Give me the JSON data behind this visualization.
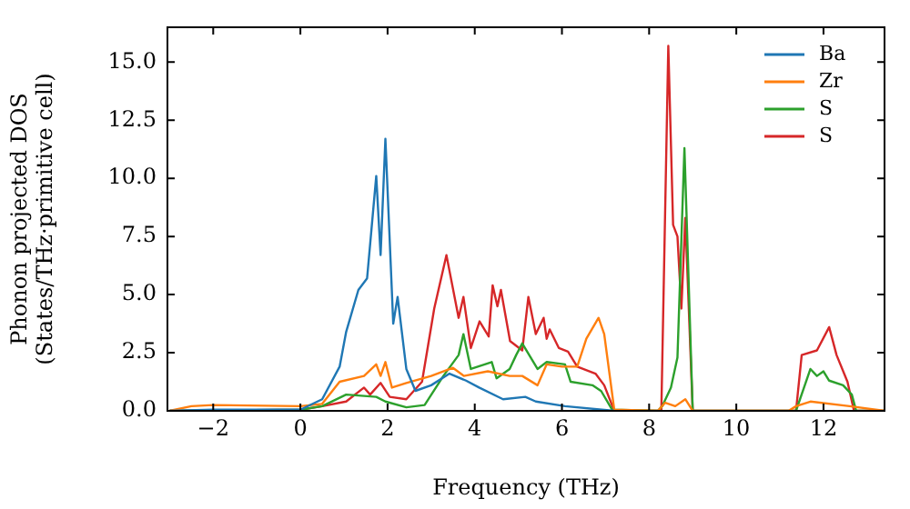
{
  "chart_data": {
    "type": "line",
    "xlabel": "Frequency (THz)",
    "ylabel": "Phonon projected DOS\n(States/THz·primitive cell)",
    "xlim": [
      -3.05,
      13.4
    ],
    "ylim": [
      0,
      16.5
    ],
    "xticks": [
      -2,
      0,
      2,
      4,
      6,
      8,
      10,
      12
    ],
    "yticks": [
      {
        "value": 0,
        "label": "0.0"
      },
      2.5,
      {
        "value": 5,
        "label": "5.0"
      },
      7.5,
      {
        "value": 10,
        "label": "10.0"
      },
      12.5,
      {
        "value": 15,
        "label": "15.0"
      }
    ],
    "legend": "top right",
    "grid": false,
    "marker": "none",
    "line_style": "solid",
    "series": [
      {
        "name": "Ba",
        "color": "#1f77b4",
        "x": [
          -3,
          -2,
          0,
          0.5,
          0.9,
          1.05,
          1.33,
          1.53,
          1.74,
          1.84,
          1.95,
          2.13,
          2.23,
          2.43,
          2.64,
          3.0,
          3.42,
          3.8,
          4.1,
          4.65,
          5.16,
          5.4,
          6.07,
          7.2
        ],
        "values": [
          0,
          0.05,
          0.05,
          0.5,
          1.9,
          3.4,
          5.2,
          5.7,
          10.1,
          6.7,
          11.7,
          3.75,
          4.9,
          1.8,
          0.86,
          1.1,
          1.6,
          1.3,
          1.0,
          0.5,
          0.6,
          0.4,
          0.2,
          0
        ]
      },
      {
        "name": "Zr",
        "color": "#ff7f0e",
        "x": [
          -3,
          -2.5,
          -2,
          0,
          0.5,
          0.9,
          1.46,
          1.74,
          1.84,
          1.95,
          2.1,
          2.43,
          3.0,
          3.5,
          3.75,
          4.3,
          4.8,
          5.09,
          5.44,
          5.65,
          6.0,
          6.35,
          6.56,
          6.84,
          6.97,
          7.2,
          8.2,
          8.37,
          8.6,
          8.83,
          9.0,
          11.2,
          11.37,
          11.7,
          12.6,
          13.4
        ],
        "values": [
          0,
          0.2,
          0.25,
          0.2,
          0.3,
          1.25,
          1.5,
          2.0,
          1.5,
          2.1,
          1.0,
          1.2,
          1.5,
          1.85,
          1.5,
          1.7,
          1.5,
          1.5,
          1.1,
          2.0,
          1.9,
          1.9,
          3.1,
          4.0,
          3.3,
          0.05,
          0,
          0.35,
          0.2,
          0.5,
          0,
          0,
          0.2,
          0.4,
          0.2,
          0
        ]
      },
      {
        "name": "S",
        "color": "#2ca02c",
        "x": [
          -3,
          0,
          0.5,
          1.05,
          1.74,
          1.95,
          2.43,
          2.85,
          3.28,
          3.63,
          3.74,
          3.91,
          4.39,
          4.5,
          4.8,
          4.95,
          5.09,
          5.44,
          5.65,
          6.07,
          6.2,
          6.7,
          6.9,
          7.15,
          8.2,
          8.3,
          8.5,
          8.65,
          8.81,
          9.0,
          11.37,
          11.7,
          11.85,
          12.0,
          12.13,
          12.45,
          12.65,
          12.75,
          13.4
        ],
        "values": [
          0,
          0.05,
          0.2,
          0.7,
          0.6,
          0.4,
          0.15,
          0.25,
          1.5,
          2.4,
          3.3,
          1.8,
          2.1,
          1.4,
          1.8,
          2.4,
          2.9,
          1.8,
          2.1,
          2.0,
          1.25,
          1.1,
          0.85,
          0.05,
          0,
          0.2,
          1.0,
          2.3,
          11.3,
          0,
          0,
          1.8,
          1.5,
          1.7,
          1.3,
          1.1,
          0.7,
          0,
          0
        ]
      },
      {
        "name": "S",
        "color": "#d62728",
        "x": [
          -3,
          0,
          0.5,
          1.05,
          1.46,
          1.6,
          1.84,
          2.05,
          2.43,
          2.79,
          3.07,
          3.35,
          3.63,
          3.74,
          3.91,
          4.11,
          4.32,
          4.41,
          4.52,
          4.6,
          4.81,
          5.09,
          5.23,
          5.4,
          5.58,
          5.65,
          5.72,
          5.93,
          6.14,
          6.35,
          6.77,
          6.97,
          7.2,
          8.28,
          8.44,
          8.55,
          8.65,
          8.74,
          8.83,
          9.0,
          11.37,
          11.5,
          11.85,
          12.13,
          12.3,
          12.55,
          12.7,
          13.4
        ],
        "values": [
          0,
          0.05,
          0.2,
          0.4,
          1.0,
          0.7,
          1.2,
          0.6,
          0.5,
          1.25,
          4.4,
          6.7,
          4.0,
          4.9,
          2.7,
          3.85,
          3.2,
          5.4,
          4.5,
          5.2,
          3.0,
          2.6,
          4.9,
          3.3,
          4.0,
          3.1,
          3.5,
          2.7,
          2.55,
          1.9,
          1.6,
          1.1,
          0,
          0,
          15.7,
          8.0,
          7.5,
          4.4,
          8.3,
          0,
          0,
          2.4,
          2.6,
          3.6,
          2.4,
          1.25,
          0,
          0
        ]
      }
    ]
  }
}
